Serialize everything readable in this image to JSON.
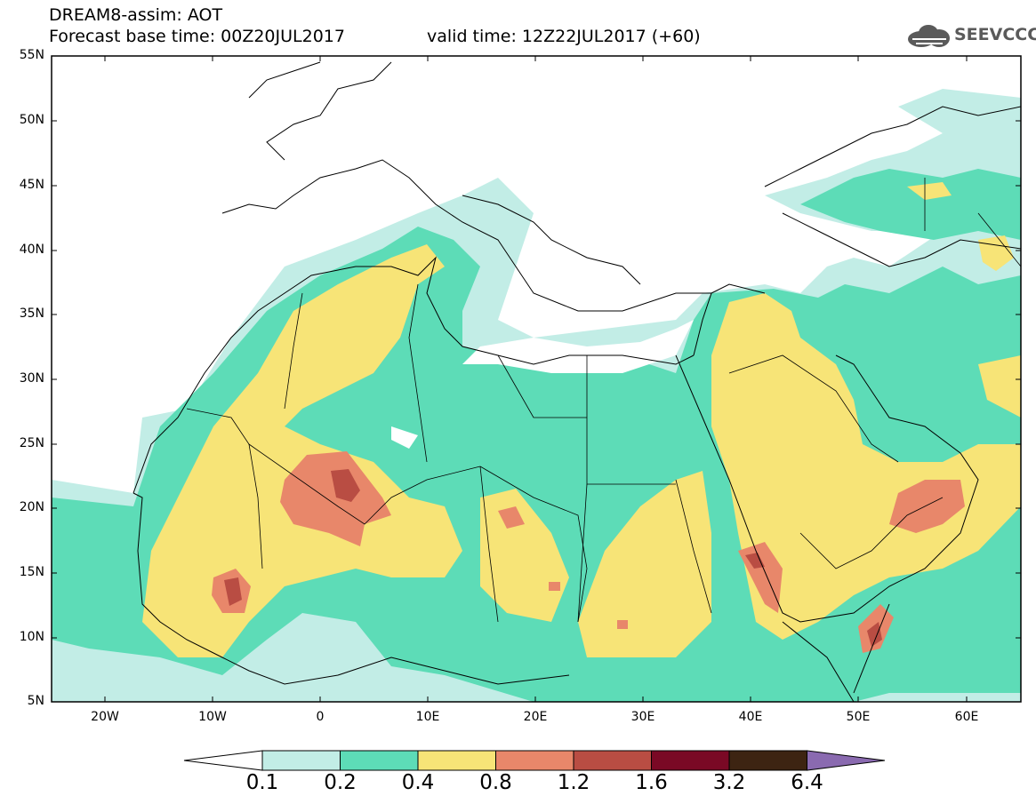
{
  "header": {
    "title": "DREAM8-assim: AOT",
    "base_time": "Forecast base time: 00Z20JUL2017",
    "valid_time": "valid time: 12Z22JUL2017 (+60)",
    "logo_text": "SEEVCCC"
  },
  "map": {
    "lon_range": [
      -25,
      65
    ],
    "lat_range": [
      5,
      55
    ],
    "lat_labels": [
      "55N",
      "50N",
      "45N",
      "40N",
      "35N",
      "30N",
      "25N",
      "20N",
      "15N",
      "10N",
      "5N"
    ],
    "lon_labels": [
      "20W",
      "10W",
      "0",
      "10E",
      "20E",
      "30E",
      "40E",
      "50E",
      "60E"
    ]
  },
  "colorbar": {
    "levels": [
      "0.1",
      "0.2",
      "0.4",
      "0.8",
      "1.2",
      "1.6",
      "3.2",
      "6.4"
    ],
    "colors": [
      "#c2ede6",
      "#5ddcb7",
      "#f7e477",
      "#e8876a",
      "#b94d43",
      "#7a0925",
      "#3d2412",
      "#8a6ab0"
    ]
  }
}
